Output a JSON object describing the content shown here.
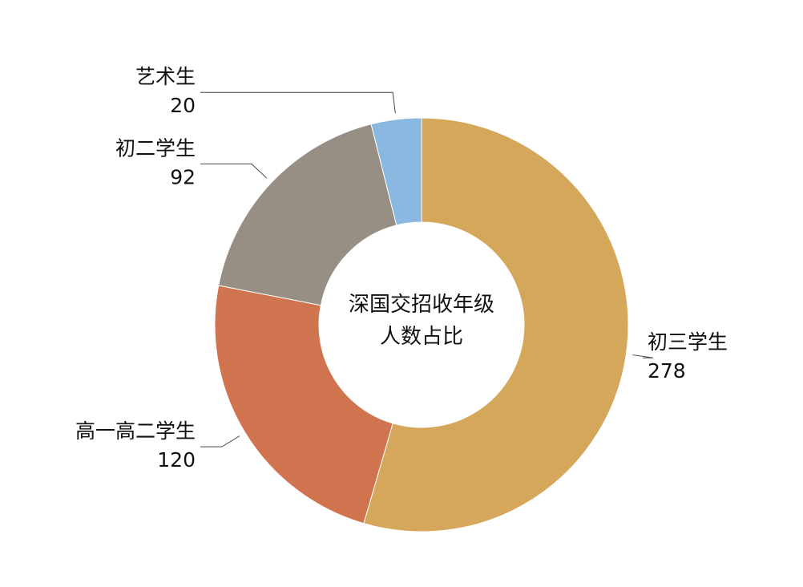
{
  "chart_data": {
    "type": "donut",
    "title": "深国交招收年级人数占比",
    "categories": [
      "初三学生",
      "高一高二学生",
      "初二学生",
      "艺术生"
    ],
    "values": [
      278,
      120,
      92,
      20
    ],
    "colors": [
      "#d4a75b",
      "#d07450",
      "#978f84",
      "#8ab8e0"
    ]
  }
}
